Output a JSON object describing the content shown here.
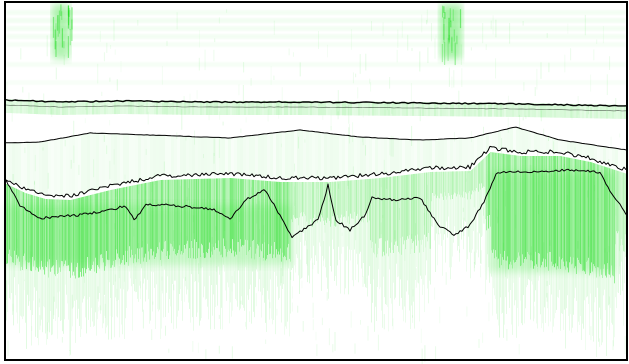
{
  "image": {
    "kind": "oct-scan-segmentation",
    "background_color": "#ffffff",
    "signal_color": "#22dd22",
    "boundary_color": "#000000",
    "frame_color": "#000000",
    "boundary_lines": [
      {
        "name": "boundary-line-1"
      },
      {
        "name": "boundary-line-2"
      },
      {
        "name": "boundary-line-3"
      },
      {
        "name": "boundary-line-4"
      }
    ]
  }
}
